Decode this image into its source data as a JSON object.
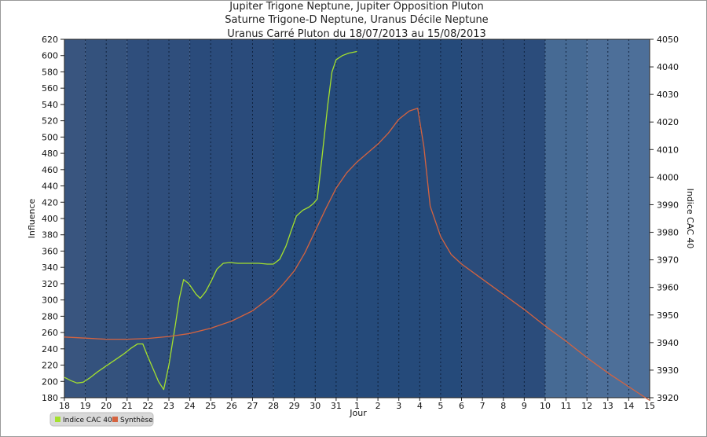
{
  "chart_data": {
    "type": "line",
    "title_lines": [
      "Jupiter Trigone Neptune, Jupiter Opposition Pluton",
      "Saturne Trigone-D Neptune, Uranus Décile Neptune",
      "Uranus Carré Pluton du 18/07/2013 au 15/08/2013"
    ],
    "xlabel": "Jour",
    "ylabel_left": "Influence",
    "ylabel_right": "Indice CAC 40",
    "x_categories": [
      "18",
      "19",
      "20",
      "21",
      "22",
      "23",
      "24",
      "25",
      "26",
      "27",
      "28",
      "29",
      "30",
      "31",
      "1",
      "2",
      "3",
      "4",
      "5",
      "6",
      "7",
      "8",
      "9",
      "10",
      "11",
      "12",
      "13",
      "14",
      "15"
    ],
    "ylim_left": [
      180,
      620
    ],
    "yticks_left": [
      180,
      200,
      220,
      240,
      260,
      280,
      300,
      320,
      340,
      360,
      380,
      400,
      420,
      440,
      460,
      480,
      500,
      520,
      540,
      560,
      580,
      600,
      620
    ],
    "ylim_right": [
      3920,
      4050
    ],
    "yticks_right": [
      3920,
      3930,
      3940,
      3950,
      3960,
      3970,
      3980,
      3990,
      4000,
      4010,
      4020,
      4030,
      4040,
      4050
    ],
    "legend_placement": "bottom-left",
    "grid": "vertical dotted lines at each day",
    "background_bands": [
      {
        "from": 0,
        "to": 1,
        "color": "#39557f"
      },
      {
        "from": 1,
        "to": 3,
        "color": "#34527d"
      },
      {
        "from": 3,
        "to": 6,
        "color": "#2f4e7c"
      },
      {
        "from": 6,
        "to": 10,
        "color": "#2a4b7b"
      },
      {
        "from": 10,
        "to": 19,
        "color": "#254a7a"
      },
      {
        "from": 19,
        "to": 23,
        "color": "#2b4c7b"
      },
      {
        "from": 23,
        "to": 25,
        "color": "#466a94"
      },
      {
        "from": 25,
        "to": 28,
        "color": "#4d6f99"
      }
    ],
    "series": [
      {
        "name": "Indice CAC 40",
        "axis": "left",
        "color": "#a4e02e",
        "points": [
          [
            0,
            205
          ],
          [
            0.3,
            201
          ],
          [
            0.6,
            198
          ],
          [
            0.9,
            199
          ],
          [
            1.2,
            204
          ],
          [
            1.6,
            212
          ],
          [
            2.0,
            219
          ],
          [
            2.4,
            226
          ],
          [
            2.8,
            233
          ],
          [
            3.2,
            241
          ],
          [
            3.5,
            246
          ],
          [
            3.75,
            246
          ],
          [
            4.0,
            230
          ],
          [
            4.3,
            212
          ],
          [
            4.5,
            200
          ],
          [
            4.75,
            190
          ],
          [
            5.0,
            220
          ],
          [
            5.3,
            268
          ],
          [
            5.5,
            302
          ],
          [
            5.7,
            325
          ],
          [
            5.95,
            320
          ],
          [
            6.3,
            307
          ],
          [
            6.5,
            302
          ],
          [
            6.75,
            310
          ],
          [
            7.0,
            322
          ],
          [
            7.3,
            338
          ],
          [
            7.6,
            345
          ],
          [
            7.9,
            346
          ],
          [
            8.3,
            345
          ],
          [
            8.8,
            345
          ],
          [
            9.3,
            345
          ],
          [
            9.7,
            344
          ],
          [
            10.0,
            344
          ],
          [
            10.3,
            350
          ],
          [
            10.6,
            366
          ],
          [
            10.85,
            385
          ],
          [
            11.1,
            403
          ],
          [
            11.4,
            410
          ],
          [
            11.7,
            414
          ],
          [
            11.9,
            418
          ],
          [
            12.1,
            424
          ],
          [
            12.3,
            470
          ],
          [
            12.6,
            540
          ],
          [
            12.8,
            580
          ],
          [
            13.0,
            595
          ],
          [
            13.3,
            600
          ],
          [
            13.6,
            603
          ],
          [
            14.0,
            605
          ]
        ]
      },
      {
        "name": "Synthèse",
        "axis": "right",
        "color": "#d5633f",
        "points": [
          [
            0,
            3942.0
          ],
          [
            1,
            3941.6
          ],
          [
            2,
            3941.2
          ],
          [
            3,
            3941.2
          ],
          [
            4,
            3941.5
          ],
          [
            5,
            3942.2
          ],
          [
            6,
            3943.3
          ],
          [
            7,
            3945.2
          ],
          [
            8,
            3947.8
          ],
          [
            9,
            3951.5
          ],
          [
            10,
            3957.3
          ],
          [
            10.5,
            3961.5
          ],
          [
            11,
            3966.0
          ],
          [
            11.5,
            3972.5
          ],
          [
            12,
            3980.5
          ],
          [
            12.5,
            3988.5
          ],
          [
            13,
            3996.0
          ],
          [
            13.5,
            4001.5
          ],
          [
            14,
            4005.5
          ],
          [
            15,
            4012.0
          ],
          [
            15.5,
            4016.0
          ],
          [
            16,
            4021.0
          ],
          [
            16.5,
            4024.0
          ],
          [
            16.9,
            4025.0
          ],
          [
            17.2,
            4011.0
          ],
          [
            17.5,
            3989.5
          ],
          [
            18,
            3978.5
          ],
          [
            18.5,
            3972.0
          ],
          [
            19,
            3968.5
          ],
          [
            20,
            3963.0
          ],
          [
            21,
            3957.5
          ],
          [
            22,
            3952.0
          ],
          [
            23,
            3946.0
          ],
          [
            24,
            3940.5
          ],
          [
            25,
            3934.5
          ],
          [
            26,
            3929.0
          ],
          [
            27,
            3924.0
          ],
          [
            28,
            3919.0
          ]
        ]
      }
    ]
  }
}
